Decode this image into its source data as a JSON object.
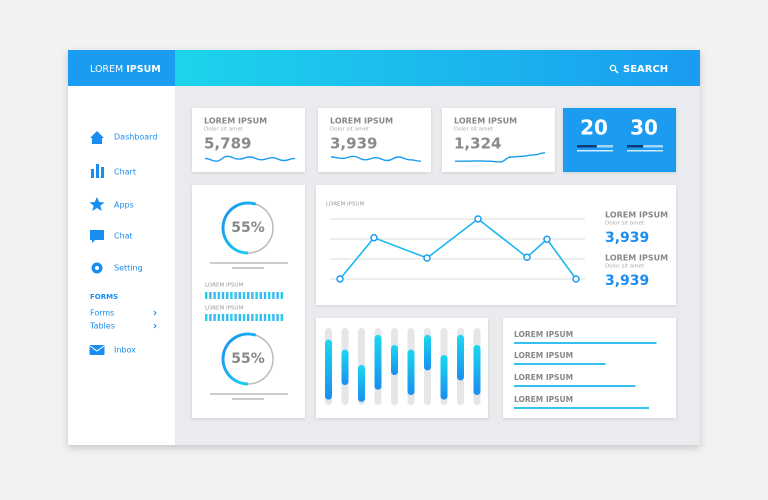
{
  "header": {
    "brand_light": "LOREM",
    "brand_bold": "IPSUM",
    "search": "SEARCH"
  },
  "sidebar": {
    "items": [
      "Dashboard",
      "Chart",
      "Apps",
      "Chat",
      "Setting"
    ],
    "section": "FORMS",
    "subitems": [
      "Forms",
      "Tables"
    ],
    "inbox": "Inbox"
  },
  "stat_cards": [
    {
      "title": "LOREM IPSUM",
      "subtitle": "Dolor sit amet",
      "value": "5,789",
      "sparkline": [
        40,
        20,
        55,
        35,
        50,
        30,
        45,
        25,
        40
      ]
    },
    {
      "title": "LOREM IPSUM",
      "subtitle": "Dolor sit amet",
      "value": "3,939",
      "sparkline": [
        50,
        40,
        55,
        30,
        45,
        25,
        50,
        30,
        20
      ]
    },
    {
      "title": "LOREM IPSUM",
      "subtitle": "Dolor sit amet",
      "value": "1,324",
      "sparkline": [
        20,
        20,
        22,
        20,
        15,
        50,
        55,
        65,
        80
      ]
    }
  ],
  "counters": {
    "values": [
      "20",
      "30"
    ],
    "progress": [
      55,
      45
    ]
  },
  "donuts": [
    {
      "value": 55,
      "label": "55%"
    },
    {
      "value": 55,
      "label": "55%"
    }
  ],
  "side_labels": [
    "LOREM IPSUM",
    "LOREM IPSUM"
  ],
  "line_chart": {
    "label": "LOREM IPSUM",
    "values": [
      0,
      55,
      28,
      80,
      29,
      53,
      0
    ],
    "legend": [
      {
        "title": "LOREM IPSUM",
        "subtitle": "Dolor sit amet",
        "value": "3,939"
      },
      {
        "title": "LOREM IPSUM",
        "subtitle": "Dolor sit amet",
        "value": "3,939"
      }
    ]
  },
  "bar_chart": {
    "ranges": [
      [
        15,
        93
      ],
      [
        28,
        74
      ],
      [
        48,
        96
      ],
      [
        9,
        80
      ],
      [
        22,
        61
      ],
      [
        28,
        87
      ],
      [
        9,
        55
      ],
      [
        35,
        93
      ],
      [
        9,
        68
      ],
      [
        22,
        87
      ]
    ]
  },
  "list": [
    {
      "label": "LOREM IPSUM",
      "value": 95
    },
    {
      "label": "LOREM IPSUM",
      "value": 61
    },
    {
      "label": "LOREM IPSUM",
      "value": 81
    },
    {
      "label": "LOREM IPSUM",
      "value": 90
    }
  ]
}
